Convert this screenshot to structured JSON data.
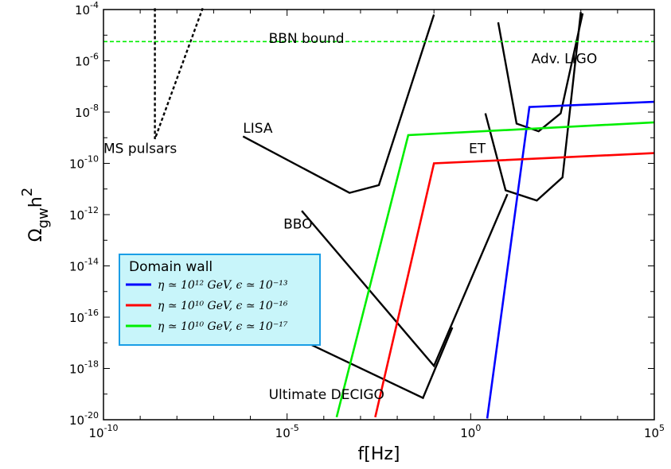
{
  "chart_data": {
    "type": "line",
    "title": "",
    "xlabel": "f[Hz]",
    "ylabel": "Ω_gw h^2",
    "x_scale": "log",
    "y_scale": "log",
    "xlim_exp": [
      -10,
      5
    ],
    "ylim_exp": [
      -20,
      -4
    ],
    "x_ticks": [
      {
        "base": "10",
        "exp": "-10",
        "value_exp": -10
      },
      {
        "base": "10",
        "exp": "-5",
        "value_exp": -5
      },
      {
        "base": "10",
        "exp": "0",
        "value_exp": 0
      },
      {
        "base": "10",
        "exp": "5",
        "value_exp": 5
      }
    ],
    "y_ticks": [
      {
        "base": "10",
        "exp": "-20",
        "value_exp": -20
      },
      {
        "base": "10",
        "exp": "-18",
        "value_exp": -18
      },
      {
        "base": "10",
        "exp": "-16",
        "value_exp": -16
      },
      {
        "base": "10",
        "exp": "-14",
        "value_exp": -14
      },
      {
        "base": "10",
        "exp": "-12",
        "value_exp": -12
      },
      {
        "base": "10",
        "exp": "-10",
        "value_exp": -10
      },
      {
        "base": "10",
        "exp": "-8",
        "value_exp": -8
      },
      {
        "base": "10",
        "exp": "-6",
        "value_exp": -6
      },
      {
        "base": "10",
        "exp": "-4",
        "value_exp": -4
      }
    ],
    "grid": false,
    "legend": {
      "title": "Domain wall",
      "placement": "lower-left",
      "background": "#c8f5fa",
      "border": "#1a9ee6",
      "entries": [
        {
          "label": "η ≃ 10¹² GeV, ϵ ≃ 10⁻¹³",
          "color": "#0000ff"
        },
        {
          "label": "η ≃ 10¹⁰ GeV, ϵ ≃ 10⁻¹⁶",
          "color": "#ff0000"
        },
        {
          "label": "η ≃ 10¹⁰ GeV, ϵ ≃ 10⁻¹⁷",
          "color": "#00ee00"
        }
      ]
    },
    "sensitivity_curves": [
      {
        "label": "LISA",
        "label_pos": [
          -6.2,
          -8.8
        ],
        "color": "#000000",
        "dash": false,
        "points_log": [
          [
            -6.2,
            -8.95
          ],
          [
            -3.3,
            -11.15
          ],
          [
            -2.5,
            -10.85
          ],
          [
            -1.0,
            -4.2
          ]
        ]
      },
      {
        "label": "Adv. LIGO",
        "label_pos": [
          1.65,
          -6.1
        ],
        "color": "#000000",
        "dash": false,
        "points_log": [
          [
            0.75,
            -4.5
          ],
          [
            1.25,
            -8.45
          ],
          [
            1.85,
            -8.75
          ],
          [
            2.45,
            -8.05
          ],
          [
            3.05,
            -4.15
          ]
        ]
      },
      {
        "label": "ET",
        "label_pos": [
          -0.05,
          -9.6
        ],
        "color": "#000000",
        "dash": false,
        "points_log": [
          [
            0.4,
            -8.05
          ],
          [
            0.95,
            -11.05
          ],
          [
            1.8,
            -11.45
          ],
          [
            2.5,
            -10.55
          ],
          [
            3.0,
            -4.1
          ]
        ]
      },
      {
        "label": "BBO",
        "label_pos": [
          -5.1,
          -12.55
        ],
        "color": "#000000",
        "dash": false,
        "points_log": [
          [
            -4.6,
            -11.85
          ],
          [
            -1.0,
            -17.9
          ],
          [
            1.0,
            -11.2
          ]
        ]
      },
      {
        "label": "Ultimate DECIGO",
        "label_pos": [
          -5.5,
          -19.2
        ],
        "color": "#000000",
        "dash": false,
        "points_log": [
          [
            -4.6,
            -16.9
          ],
          [
            -1.3,
            -19.15
          ],
          [
            -0.5,
            -16.4
          ]
        ]
      },
      {
        "label": "MS pulsars",
        "label_pos": [
          -10.0,
          -9.6
        ],
        "color": "#000000",
        "dash": true,
        "points_log": [
          [
            -8.6,
            -3.95
          ],
          [
            -8.6,
            -9.05
          ],
          [
            -7.3,
            -3.95
          ]
        ]
      },
      {
        "label": "BBN bound",
        "label_pos": [
          -5.5,
          -5.3
        ],
        "color": "#00ee00",
        "dash": true,
        "points_log": [
          [
            -10.0,
            -5.25
          ],
          [
            5.0,
            -5.25
          ]
        ]
      }
    ],
    "series": [
      {
        "name": "η ≃ 10¹² GeV, ϵ ≃ 10⁻¹³",
        "color": "#0000ff",
        "points_log": [
          [
            0.45,
            -19.95
          ],
          [
            1.6,
            -7.8
          ],
          [
            5.0,
            -7.6
          ]
        ]
      },
      {
        "name": "η ≃ 10¹⁰ GeV, ϵ ≃ 10⁻¹⁶",
        "color": "#ff0000",
        "points_log": [
          [
            -2.6,
            -19.9
          ],
          [
            -1.0,
            -10.0
          ],
          [
            5.0,
            -9.6
          ]
        ]
      },
      {
        "name": "η ≃ 10¹⁰ GeV, ϵ ≃ 10⁻¹⁷",
        "color": "#00ee00",
        "points_log": [
          [
            -3.65,
            -19.9
          ],
          [
            -1.7,
            -8.9
          ],
          [
            5.0,
            -8.4
          ]
        ]
      }
    ]
  }
}
